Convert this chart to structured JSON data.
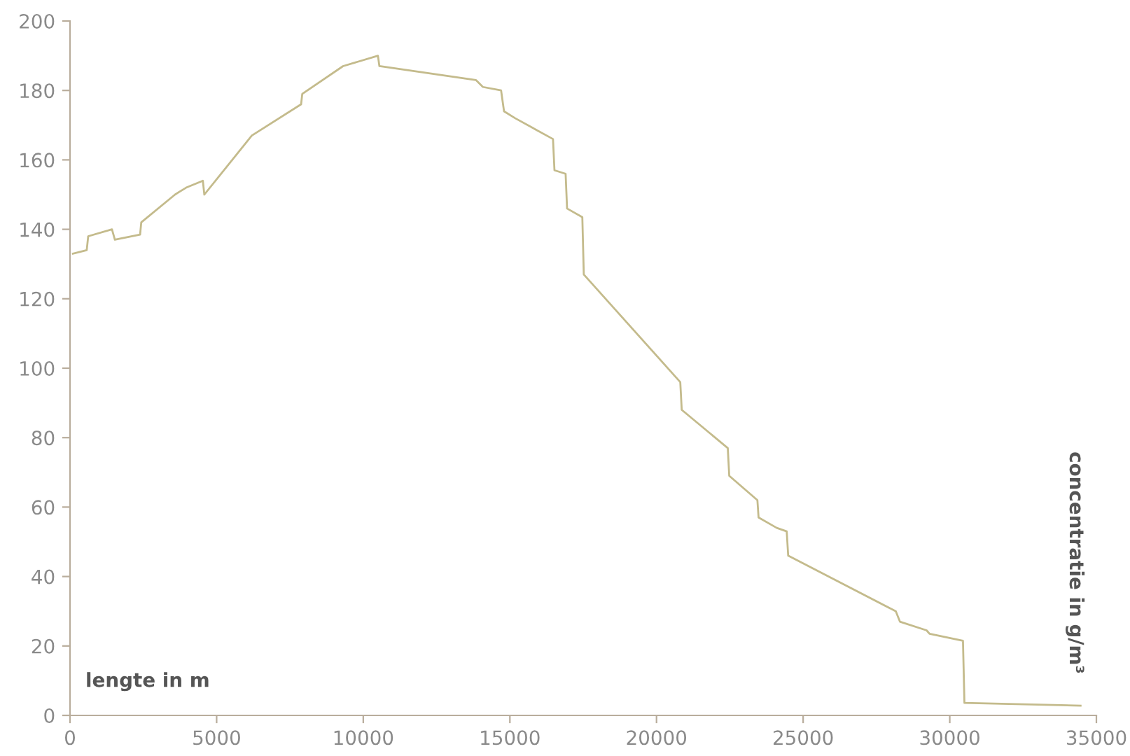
{
  "chart_data": {
    "type": "line",
    "xlabel": "lengte in m",
    "ylabel": "concentratie in g/m³",
    "xlim": [
      0,
      35000
    ],
    "xticks": [
      0,
      5000,
      10000,
      15000,
      20000,
      25000,
      30000,
      35000
    ],
    "ylim": [
      0,
      200
    ],
    "yticks": [
      0,
      20,
      40,
      60,
      80,
      100,
      120,
      140,
      160,
      180,
      200
    ],
    "grid": false,
    "legend": false,
    "marker": "none",
    "line_style": "solid",
    "series": [
      {
        "color": "#c4bb8c",
        "x": [
          100,
          570,
          620,
          1430,
          1530,
          2390,
          2430,
          3580,
          3960,
          4530,
          4580,
          6200,
          7880,
          7920,
          9310,
          10500,
          10550,
          13840,
          14080,
          14700,
          14800,
          15180,
          16470,
          16520,
          16900,
          16950,
          17470,
          17520,
          20810,
          20860,
          22430,
          22480,
          23440,
          23480,
          24100,
          24440,
          24490,
          28160,
          28300,
          29210,
          29310,
          30450,
          30500,
          34460
        ],
        "values": [
          133,
          134,
          138,
          140,
          137,
          138.5,
          142,
          150,
          152,
          154,
          150,
          167,
          176,
          179,
          187,
          190,
          187,
          183,
          181,
          180,
          174,
          172,
          166,
          157,
          156,
          146,
          143.5,
          127,
          96,
          88,
          77,
          69,
          62,
          57,
          54,
          53,
          46,
          30,
          27,
          24.5,
          23.5,
          21.5,
          3.6,
          2.8
        ]
      }
    ]
  }
}
